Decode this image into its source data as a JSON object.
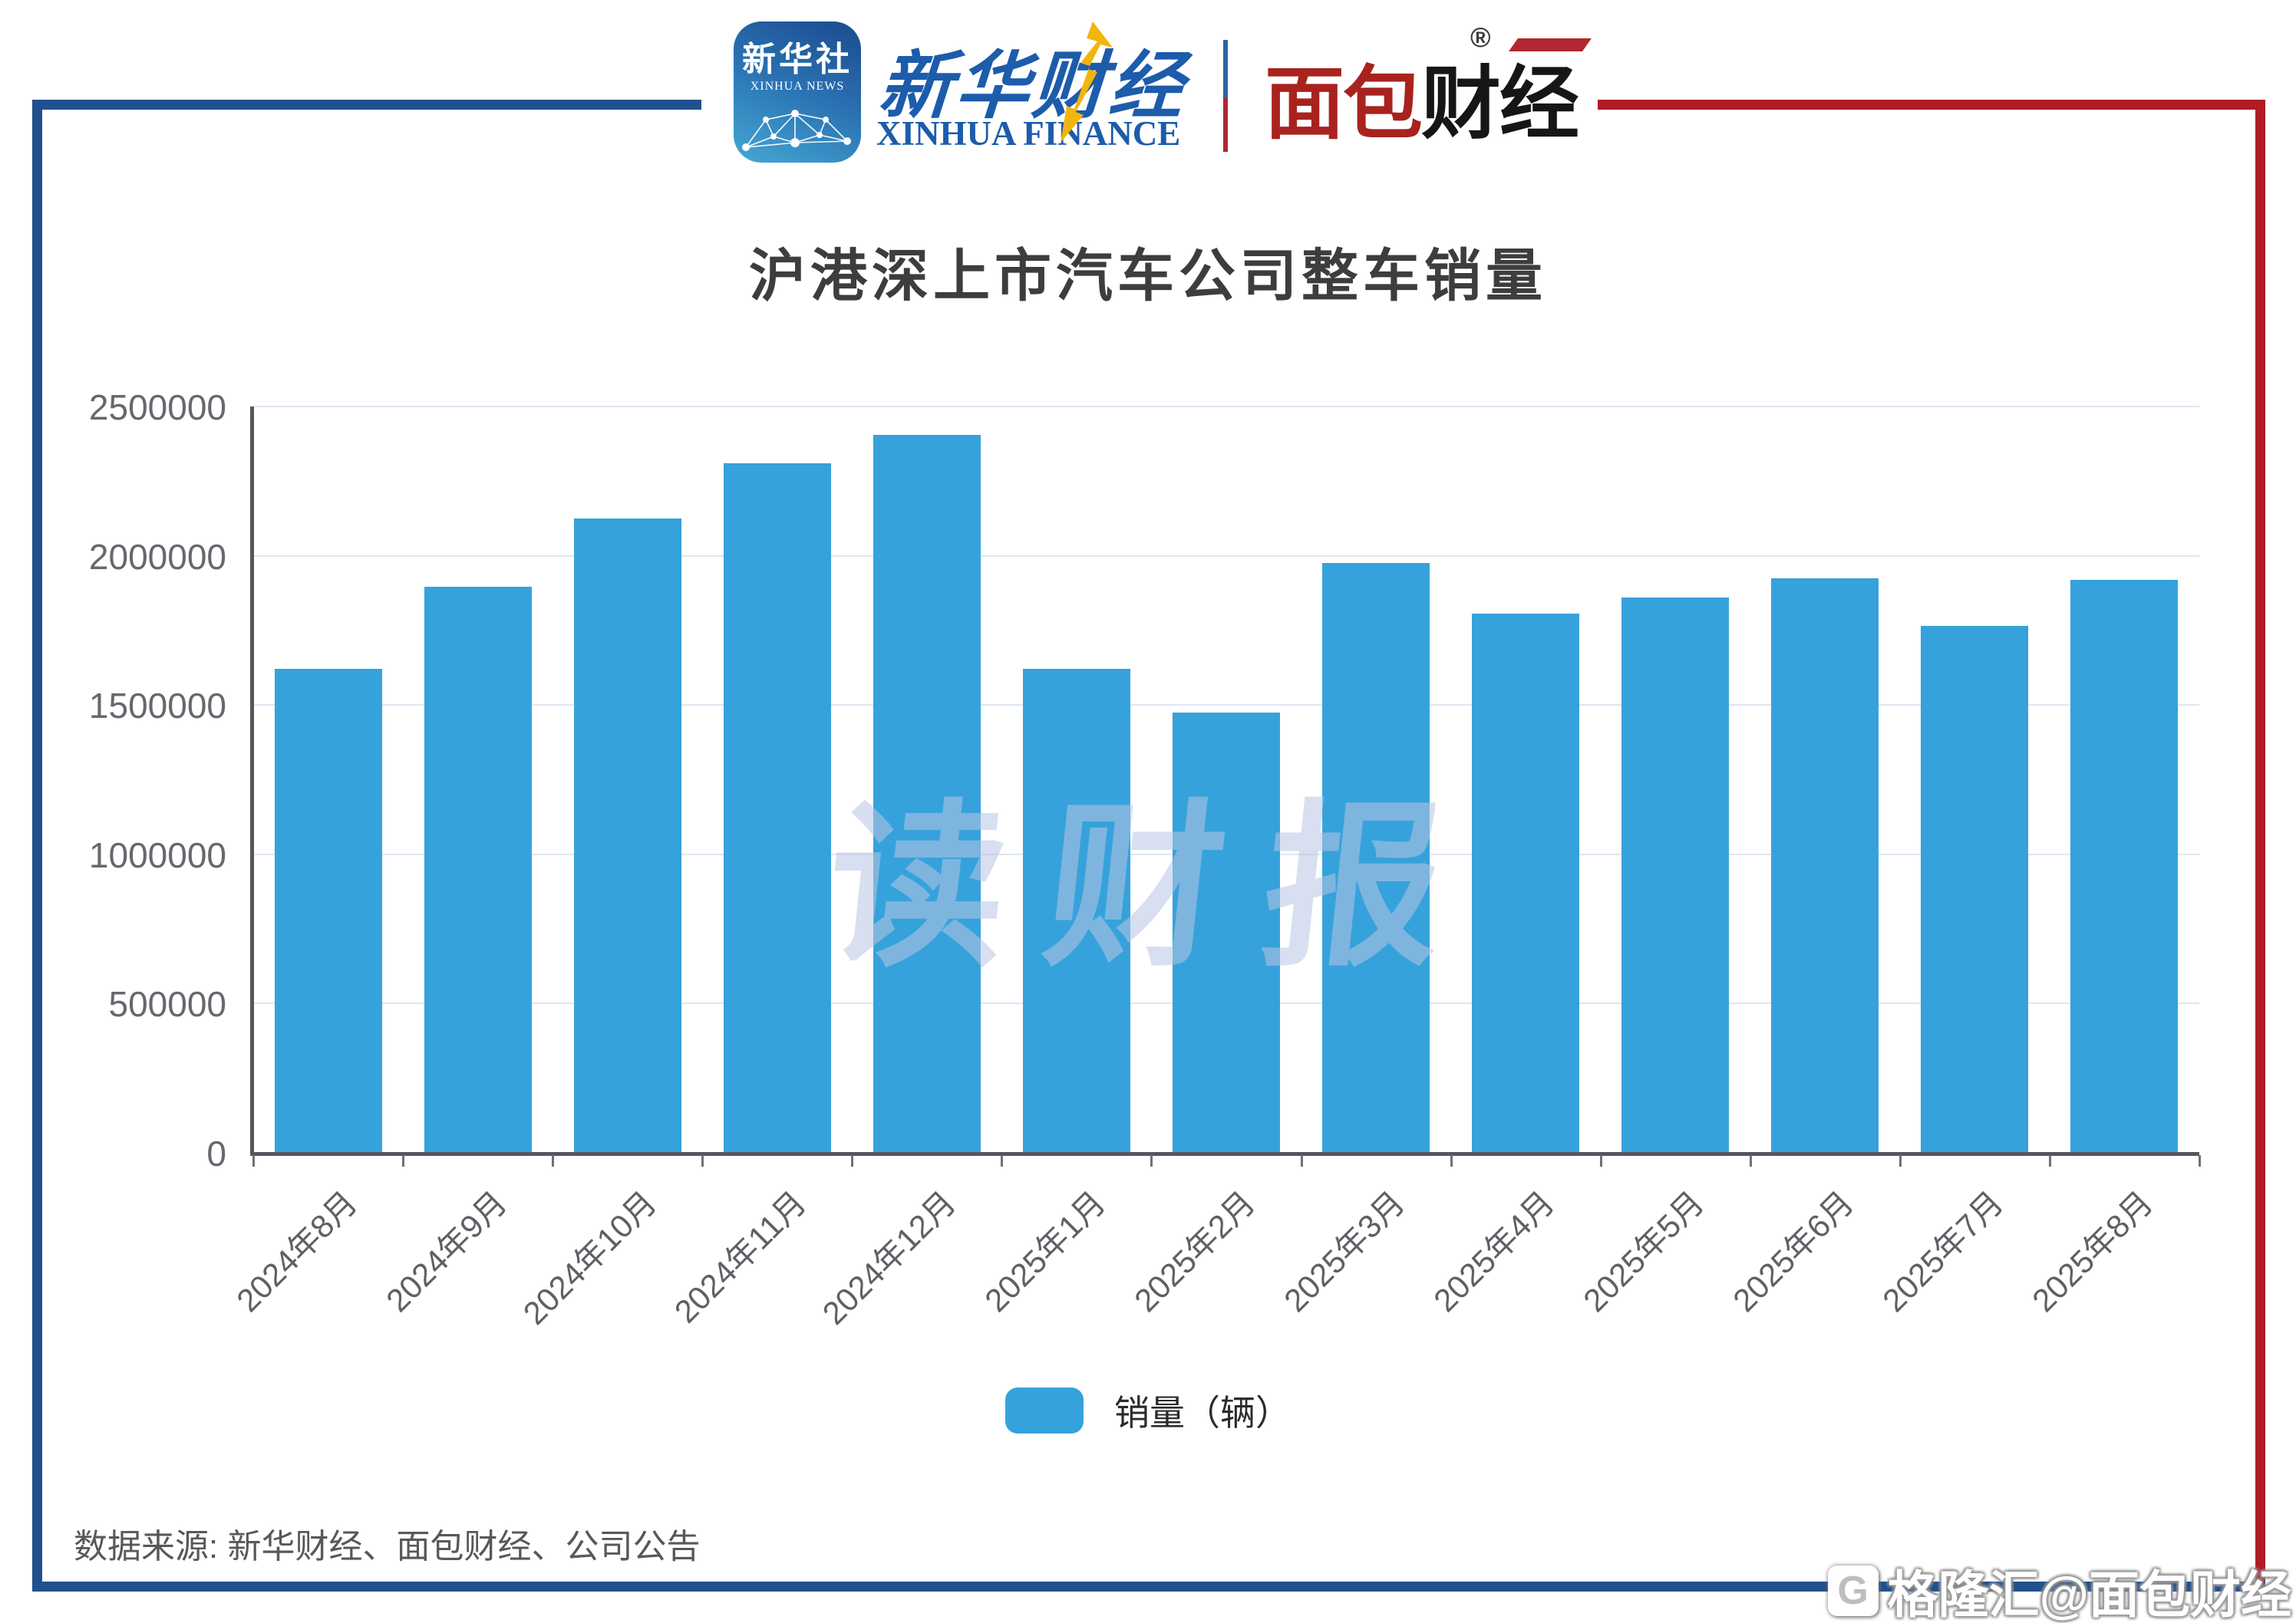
{
  "header": {
    "xinhua_news_icon": {
      "cn": "新华社",
      "en": "XINHUA NEWS"
    },
    "xinhua_finance": {
      "cn": "新华财经",
      "en": "XINHUA FINANCE"
    },
    "mianbao_finance": {
      "cn_red": "面包",
      "cn_black": "财经",
      "reg_mark": "®"
    }
  },
  "title": "沪港深上市汽车公司整车销量",
  "legend": {
    "label": "销量（辆）",
    "swatch_color": "#36a2db"
  },
  "source_note": "数据来源: 新华财经、面包财经、公司公告",
  "watermark_center": "读财报",
  "watermark_corner": {
    "logo_letter": "G",
    "text": "格隆汇@面包财经"
  },
  "colors": {
    "bar": "#36a2db",
    "frame_blue": "#21508e",
    "frame_red": "#b01b24",
    "gridline": "#dfe5f2",
    "axis": "#55565e",
    "title_text": "#3d3d3d",
    "tick_text": "#66686e"
  },
  "chart_data": {
    "type": "bar",
    "title": "沪港深上市汽车公司整车销量",
    "categories": [
      "2024年8月",
      "2024年9月",
      "2024年10月",
      "2024年11月",
      "2024年12月",
      "2025年1月",
      "2025年2月",
      "2025年3月",
      "2025年4月",
      "2025年5月",
      "2025年6月",
      "2025年7月",
      "2025年8月"
    ],
    "series": [
      {
        "name": "销量（辆）",
        "values": [
          1620000,
          1895000,
          2125000,
          2310000,
          2405000,
          1620000,
          1475000,
          1975000,
          1805000,
          1860000,
          1925000,
          1765000,
          1920000
        ]
      }
    ],
    "xlabel": "",
    "ylabel": "",
    "ylim": [
      0,
      2500000
    ],
    "ytick_interval": 500000,
    "ytick_labels": [
      "0",
      "500000",
      "1000000",
      "1500000",
      "2000000",
      "2500000"
    ],
    "grid": true,
    "legend_position": "bottom",
    "bar_color": "#36a2db"
  }
}
